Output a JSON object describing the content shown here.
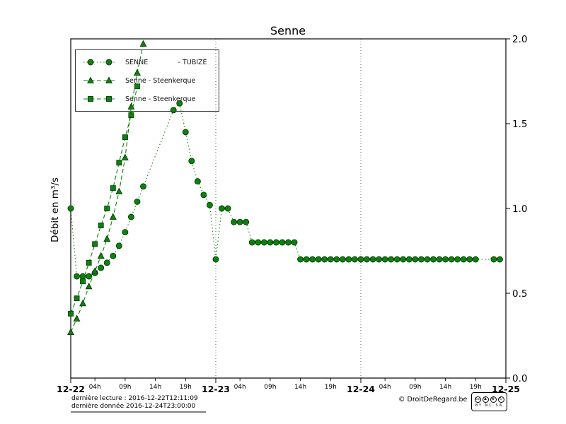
{
  "title": "Senne",
  "y_axis": {
    "label": "Débit en m³/s",
    "tick_labels": [
      "0.0",
      "0.5",
      "1.0",
      "1.5",
      "2.0"
    ],
    "min": 0.0,
    "max": 2.0
  },
  "x_axis": {
    "day_labels": [
      "12-22",
      "12-23",
      "12-24",
      "12-25"
    ],
    "hour_labels": [
      "04h",
      "09h",
      "14h",
      "19h"
    ],
    "hour_positions": [
      4,
      9,
      14,
      19
    ],
    "hours_per_day": 24,
    "total_hours": 72
  },
  "legend": {
    "items": [
      {
        "label": "SENNE              - TUBIZE",
        "marker": "circle",
        "line": "dotted"
      },
      {
        "label": "Senne - Steenkerque",
        "marker": "triangle",
        "line": "dashed"
      },
      {
        "label": "Senne - Steenkerque",
        "marker": "square",
        "line": "dashed"
      }
    ]
  },
  "footer": {
    "last_reading": "dernière lecture : 2016-12-22T12:11:09",
    "last_data": "dernière donnée  2016-12-24T23:00:00",
    "credit": "© DroitDeRegard.be",
    "license_labels": "BY NC SA",
    "cc_icons": [
      {
        "name": "cc-logo-icon",
        "glyph": "cc",
        "struck": false
      },
      {
        "name": "attribution-icon",
        "glyph": "♟",
        "struck": false
      },
      {
        "name": "non-commercial-icon",
        "glyph": "$",
        "struck": true
      },
      {
        "name": "share-alike-icon",
        "glyph": "↻",
        "struck": false
      }
    ]
  },
  "colors": {
    "series_green": "#108010",
    "marker_edge": "#003b00",
    "gridline": "#333333"
  },
  "chart_data": {
    "type": "line",
    "title": "Senne",
    "xlabel": "",
    "ylabel": "Débit en m³/s",
    "ylim": [
      0.0,
      2.0
    ],
    "yticks": [
      0.0,
      0.5,
      1.0,
      1.5,
      2.0
    ],
    "x_unit": "hours since 2016-12-22 00:00",
    "xlim": [
      0,
      72
    ],
    "grid_vertical_at_hours": [
      24,
      48
    ],
    "legend_position": "upper left",
    "series": [
      {
        "name": "SENNE - TUBIZE",
        "marker": "circle",
        "linestyle": "dotted",
        "color": "#108010",
        "values_hourly": [
          1.0,
          0.6,
          0.6,
          0.6,
          0.62,
          0.65,
          0.68,
          0.72,
          0.78,
          0.86,
          0.95,
          1.04,
          1.13,
          null,
          null,
          null,
          null,
          1.58,
          1.62,
          1.45,
          1.28,
          1.16,
          1.08,
          1.02,
          0.7,
          1.0,
          1.0,
          0.92,
          0.92,
          0.92,
          0.8,
          0.8,
          0.8,
          0.8,
          0.8,
          0.8,
          0.8,
          0.8,
          0.7,
          0.7,
          0.7,
          0.7,
          0.7,
          0.7,
          0.7,
          0.7,
          0.7,
          0.7,
          0.7,
          0.7,
          0.7,
          0.7,
          0.7,
          0.7,
          0.7,
          0.7,
          0.7,
          0.7,
          0.7,
          0.7,
          0.7,
          0.7,
          0.7,
          0.7,
          0.7,
          0.7,
          0.7,
          0.7,
          null,
          null,
          0.7,
          0.7
        ]
      },
      {
        "name": "Senne - Steenkerque",
        "marker": "triangle",
        "linestyle": "dashed",
        "color": "#108010",
        "values_hourly": [
          0.27,
          0.35,
          0.44,
          0.54,
          0.63,
          0.72,
          0.82,
          0.95,
          1.1,
          1.3,
          1.6,
          1.8,
          1.97
        ]
      },
      {
        "name": "Senne - Steenkerque",
        "marker": "square",
        "linestyle": "dashed",
        "color": "#108010",
        "values_hourly": [
          0.38,
          0.47,
          0.57,
          0.68,
          0.79,
          0.9,
          1.0,
          1.12,
          1.27,
          1.42,
          1.55,
          1.72
        ]
      }
    ]
  }
}
